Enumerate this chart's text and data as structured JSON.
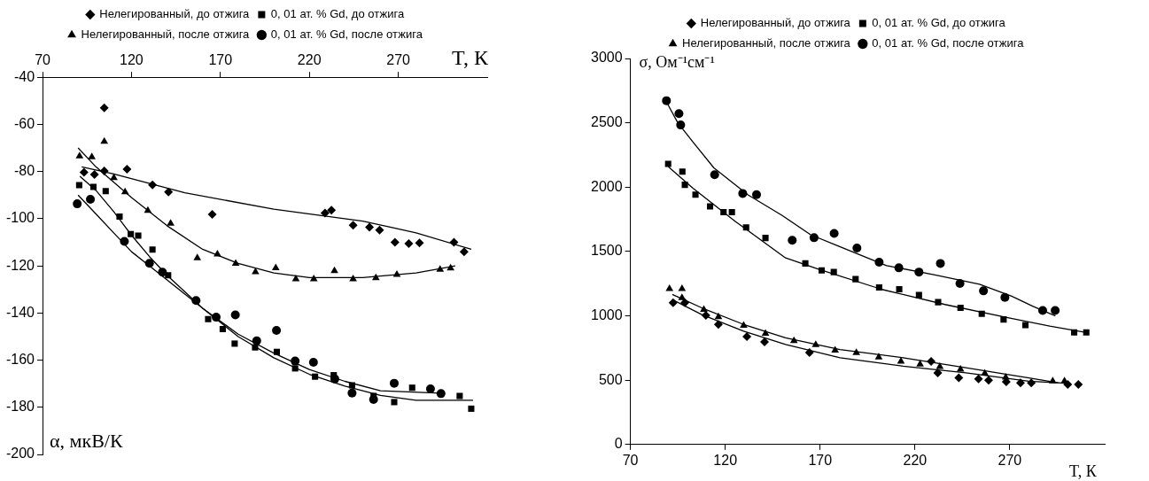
{
  "chart_data": [
    {
      "type": "scatter",
      "xlabel": "T, К",
      "ylabel": "α, мкВ/К",
      "xlim": [
        70,
        320
      ],
      "xticks": [
        70,
        120,
        170,
        220,
        270
      ],
      "ylim": [
        -200,
        -40
      ],
      "yticks": [
        -200,
        -180,
        -160,
        -140,
        -120,
        -100,
        -80,
        -60,
        -40
      ],
      "grid": false,
      "legend": "top",
      "series": [
        {
          "name": "Нелегированный, до отжига",
          "marker": "diamond",
          "color": "#000000",
          "x": [
            93.3,
            99.2,
            104.7,
            104.7,
            117.5,
            131.8,
            140.8,
            165.4,
            228.8,
            232.4,
            244.6,
            253.8,
            259.5,
            268.1,
            275.9,
            281.9,
            301.3,
            307
          ],
          "values": [
            -80.3,
            -81.3,
            -79.8,
            -53,
            -79,
            -85.7,
            -88.7,
            -98.2,
            -97.6,
            -96.4,
            -102.8,
            -103.6,
            -104.8,
            -110,
            -110.6,
            -110.3,
            -110,
            -114
          ]
        },
        {
          "name": "0, 01 ат. % Gd, до отжига",
          "marker": "square",
          "color": "#000000",
          "x": [
            90.6,
            98.6,
            105.5,
            113.3,
            119.6,
            123.8,
            131.8,
            140.6,
            163.1,
            171.3,
            178,
            189.5,
            201.7,
            212,
            223.2,
            233.7,
            244,
            256.1,
            267.7,
            277.8,
            304.5,
            311
          ],
          "values": [
            -85.8,
            -86.5,
            -88.3,
            -99.1,
            -106.5,
            -107.2,
            -113.1,
            -124,
            -142.6,
            -146.8,
            -153,
            -154.6,
            -156.5,
            -163.5,
            -167,
            -166.4,
            -170.7,
            -175.2,
            -177.8,
            -171.7,
            -175.2,
            -180.6
          ]
        },
        {
          "name": "Нелегированный, после отжига",
          "marker": "triangle",
          "color": "#000000",
          "x": [
            90.8,
            97.7,
            104.7,
            110.1,
            116.4,
            129.2,
            142,
            157,
            168.3,
            178.6,
            189.7,
            201.1,
            212.4,
            222.5,
            234.1,
            244.6,
            257.4,
            269.2,
            293.5,
            299.4
          ],
          "values": [
            -73.5,
            -73.8,
            -67.3,
            -82.7,
            -88.7,
            -96.6,
            -102,
            -116.7,
            -115.1,
            -119,
            -122.6,
            -120.9,
            -125.6,
            -125.6,
            -122.1,
            -125.6,
            -125.1,
            -123.7,
            -121.6,
            -121
          ]
        },
        {
          "name": "0, 01 ат. % Gd, после отжига",
          "marker": "circle",
          "color": "#000000",
          "x": [
            89.5,
            96.9,
            116,
            130.1,
            137.4,
            156.3,
            167.6,
            178.4,
            190.4,
            201.5,
            212,
            222.3,
            234.3,
            244,
            256.1,
            267.7,
            288.1,
            294
          ],
          "values": [
            -93.7,
            -91.8,
            -109.6,
            -118.9,
            -122.7,
            -134.7,
            -141.8,
            -140.8,
            -151.8,
            -147.4,
            -160.4,
            -160.9,
            -168,
            -174,
            -176.7,
            -169.8,
            -172.2,
            -174.2
          ]
        },
        {
          "type": "line",
          "marker": "none",
          "color": "#000000",
          "x": [
            92,
            110,
            150,
            200,
            250,
            280,
            311
          ],
          "values": [
            -78,
            -81,
            -89,
            -96,
            -101,
            -106,
            -113
          ]
        },
        {
          "type": "line",
          "marker": "none",
          "color": "#000000",
          "x": [
            91,
            100,
            110,
            120,
            130,
            140,
            160,
            180,
            200,
            220,
            240,
            260,
            280,
            312
          ],
          "values": [
            -82,
            -88,
            -97,
            -107,
            -116,
            -124,
            -138,
            -150,
            -159,
            -166,
            -171,
            -175,
            -177,
            -177
          ]
        },
        {
          "type": "line",
          "marker": "none",
          "color": "#000000",
          "x": [
            90,
            100,
            120,
            140,
            160,
            180,
            200,
            220,
            250,
            280,
            302
          ],
          "values": [
            -70,
            -78,
            -91,
            -103,
            -113,
            -119,
            -123,
            -125,
            -125,
            -123,
            -120
          ]
        },
        {
          "type": "line",
          "marker": "none",
          "color": "#000000",
          "x": [
            90,
            100,
            110,
            120,
            130,
            140,
            160,
            180,
            200,
            220,
            240,
            260,
            294
          ],
          "values": [
            -90,
            -98,
            -106,
            -114,
            -120,
            -126,
            -138,
            -149,
            -157,
            -164,
            -169,
            -173,
            -174
          ]
        }
      ]
    },
    {
      "type": "scatter",
      "xlabel": "T, К",
      "ylabel": "σ, Ом⁻¹см⁻¹",
      "xlim": [
        70,
        320
      ],
      "xticks": [
        70,
        120,
        170,
        220,
        270
      ],
      "ylim": [
        0,
        3000
      ],
      "yticks": [
        0,
        500,
        1000,
        1500,
        2000,
        2500,
        3000
      ],
      "grid": false,
      "legend": "top",
      "series": [
        {
          "name": "Нелегированный, до отжига",
          "marker": "diamond",
          "color": "#000000",
          "x": [
            92.5,
            98.7,
            109.8,
            116.4,
            131.4,
            140.7,
            164.4,
            228.5,
            232,
            243.1,
            253.5,
            258.8,
            268.1,
            275.6,
            281.3,
            300.5,
            306.1
          ],
          "values": [
            1101,
            1101,
            1003,
            933,
            839,
            798,
            715,
            645,
            557,
            518,
            510,
            500,
            487,
            479,
            479,
            466,
            466
          ]
        },
        {
          "name": "0, 01 ат. % Gd, до отжига",
          "marker": "square",
          "color": "#000000",
          "x": [
            89.9,
            97.4,
            98.7,
            104.3,
            112,
            119.1,
            123.5,
            131,
            141.2,
            162.2,
            170.8,
            177.2,
            188.7,
            201.1,
            211.7,
            222.1,
            232.2,
            244,
            255.2,
            266.7,
            278.2,
            303.9,
            310.3
          ],
          "values": [
            2181,
            2121,
            2018,
            1941,
            1850,
            1806,
            1806,
            1687,
            1605,
            1407,
            1353,
            1340,
            1285,
            1220,
            1207,
            1161,
            1106,
            1062,
            1016,
            972,
            928,
            871,
            871
          ]
        },
        {
          "name": "Нелегированный, после отжига",
          "marker": "triangle",
          "color": "#000000",
          "x": [
            90.6,
            97.2,
            97.2,
            108.7,
            116.4,
            129.7,
            141.2,
            156.2,
            167.7,
            177.9,
            189.1,
            200.9,
            212.6,
            222.7,
            233.1,
            244,
            256.8,
            267.8,
            292.6,
            298.8
          ],
          "values": [
            1210,
            1210,
            1140,
            1049,
            992,
            925,
            863,
            806,
            775,
            731,
            712,
            679,
            645,
            624,
            604,
            583,
            552,
            521,
            492,
            492
          ]
        },
        {
          "name": "0, 01 ат. % Gd, после отжига",
          "marker": "circle",
          "color": "#000000",
          "x": [
            89,
            95.6,
            96.5,
            114.4,
            129.2,
            136.5,
            155.3,
            166.8,
            177.4,
            189.4,
            201.1,
            211.5,
            222.1,
            233.4,
            243.7,
            256.1,
            267.4,
            287.3,
            293.9
          ],
          "values": [
            2672,
            2571,
            2483,
            2096,
            1951,
            1941,
            1587,
            1607,
            1641,
            1527,
            1417,
            1373,
            1340,
            1407,
            1251,
            1194,
            1143,
            1042,
            1042
          ]
        },
        {
          "type": "line",
          "marker": "none",
          "color": "#000000",
          "x": [
            92.1,
            107.6,
            129.7,
            151.8,
            180.5,
            213.7,
            246.8,
            280,
            302
          ],
          "values": [
            1127,
            1010,
            881,
            777,
            674,
            609,
            557,
            492,
            474
          ]
        },
        {
          "type": "line",
          "marker": "none",
          "color": "#000000",
          "x": [
            89.9,
            103,
            125.3,
            151.8,
            169.5,
            202.6,
            235.8,
            268.9,
            291,
            311
          ],
          "values": [
            2160,
            1992,
            1734,
            1450,
            1360,
            1205,
            1088,
            985,
            920,
            868
          ]
        },
        {
          "type": "line",
          "marker": "none",
          "color": "#000000",
          "x": [
            92.1,
            107.6,
            129.7,
            151.8,
            180.5,
            213.7,
            246.8,
            280,
            295.5
          ],
          "values": [
            1166,
            1062,
            933,
            829,
            738,
            674,
            596,
            518,
            479
          ]
        },
        {
          "type": "line",
          "marker": "none",
          "color": "#000000",
          "x": [
            88,
            95,
            103,
            114,
            132,
            150,
            165,
            180,
            205,
            230,
            254,
            271,
            282,
            294
          ],
          "values": [
            2690,
            2500,
            2350,
            2150,
            1940,
            1780,
            1630,
            1540,
            1390,
            1320,
            1245,
            1153,
            1075,
            1000
          ]
        }
      ]
    }
  ]
}
